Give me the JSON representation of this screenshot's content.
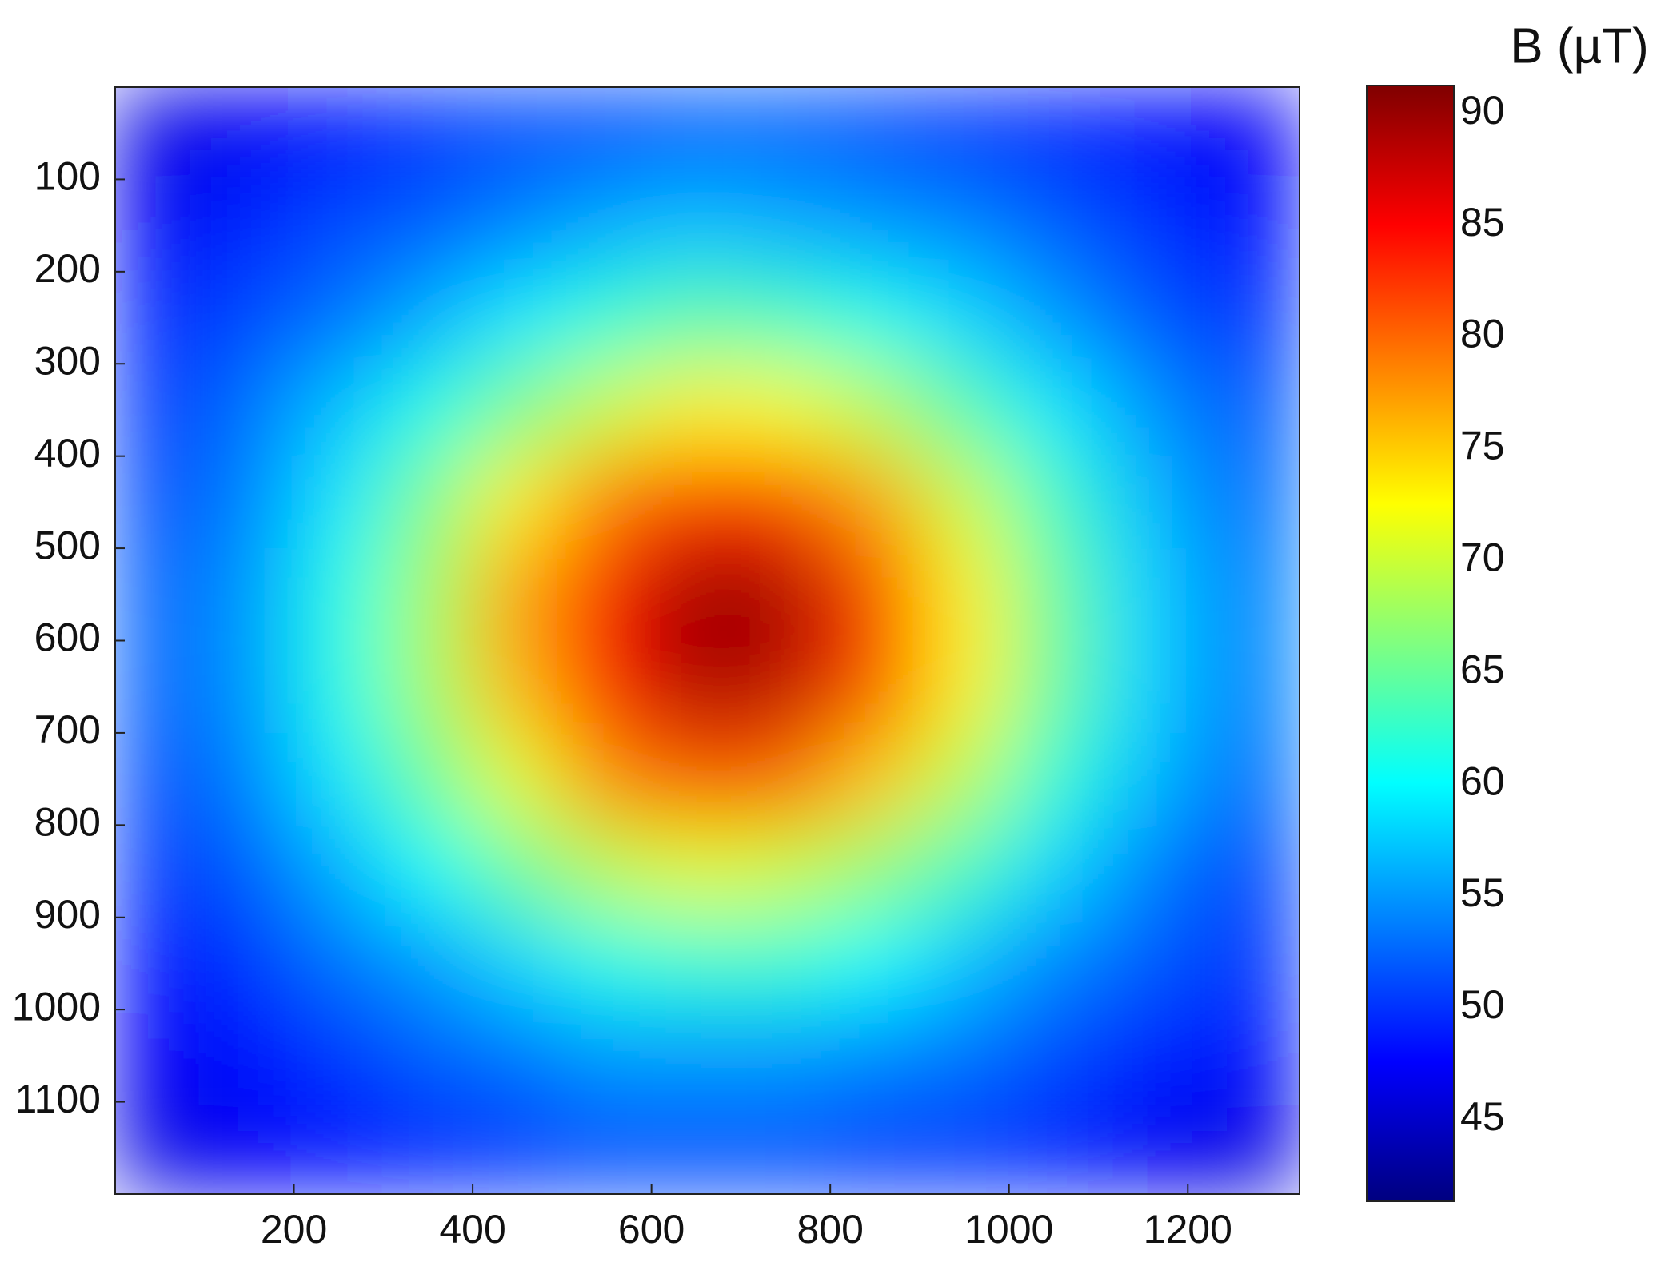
{
  "chart_data": {
    "type": "heatmap",
    "colormap": "jet",
    "colorbar_label": "B (µT)",
    "xlim": [
      0,
      1325
    ],
    "ylim": [
      1200,
      0
    ],
    "xticks": [
      200,
      400,
      600,
      800,
      1000,
      1200
    ],
    "yticks": [
      100,
      200,
      300,
      400,
      500,
      600,
      700,
      800,
      900,
      1000,
      1100
    ],
    "clim": [
      41.2,
      91.1
    ],
    "cticks": [
      45,
      50,
      55,
      60,
      65,
      70,
      75,
      80,
      85,
      90
    ],
    "x": [
      50,
      150,
      250,
      350,
      450,
      550,
      650,
      750,
      850,
      950,
      1050,
      1150,
      1250
    ],
    "y": [
      50,
      150,
      250,
      350,
      450,
      550,
      650,
      750,
      850,
      950,
      1050,
      1150
    ],
    "z": [
      [
        46,
        47,
        48,
        50,
        51,
        51,
        52,
        52,
        51,
        50,
        49,
        48,
        47
      ],
      [
        47,
        49,
        51,
        52,
        54,
        56,
        57,
        56,
        55,
        54,
        52,
        50,
        48
      ],
      [
        49,
        51,
        53,
        56,
        59,
        62,
        64,
        63,
        61,
        58,
        55,
        52,
        50
      ],
      [
        50,
        53,
        57,
        61,
        66,
        70,
        73,
        72,
        69,
        64,
        59,
        55,
        52
      ],
      [
        51,
        54,
        59,
        66,
        73,
        79,
        83,
        82,
        77,
        70,
        63,
        57,
        53
      ],
      [
        52,
        55,
        61,
        68,
        77,
        85,
        90,
        89,
        82,
        73,
        65,
        58,
        54
      ],
      [
        52,
        55,
        61,
        68,
        76,
        84,
        89,
        88,
        81,
        73,
        65,
        58,
        54
      ],
      [
        51,
        54,
        59,
        65,
        71,
        78,
        81,
        80,
        75,
        69,
        62,
        57,
        53
      ],
      [
        50,
        52,
        56,
        60,
        65,
        69,
        71,
        70,
        67,
        63,
        58,
        54,
        51
      ],
      [
        48,
        50,
        53,
        55,
        58,
        61,
        62,
        62,
        60,
        57,
        54,
        52,
        50
      ],
      [
        47,
        48,
        50,
        52,
        53,
        55,
        55,
        55,
        54,
        53,
        51,
        49,
        48
      ],
      [
        46,
        47,
        48,
        49,
        50,
        51,
        51,
        51,
        50,
        50,
        49,
        47,
        46
      ]
    ]
  }
}
